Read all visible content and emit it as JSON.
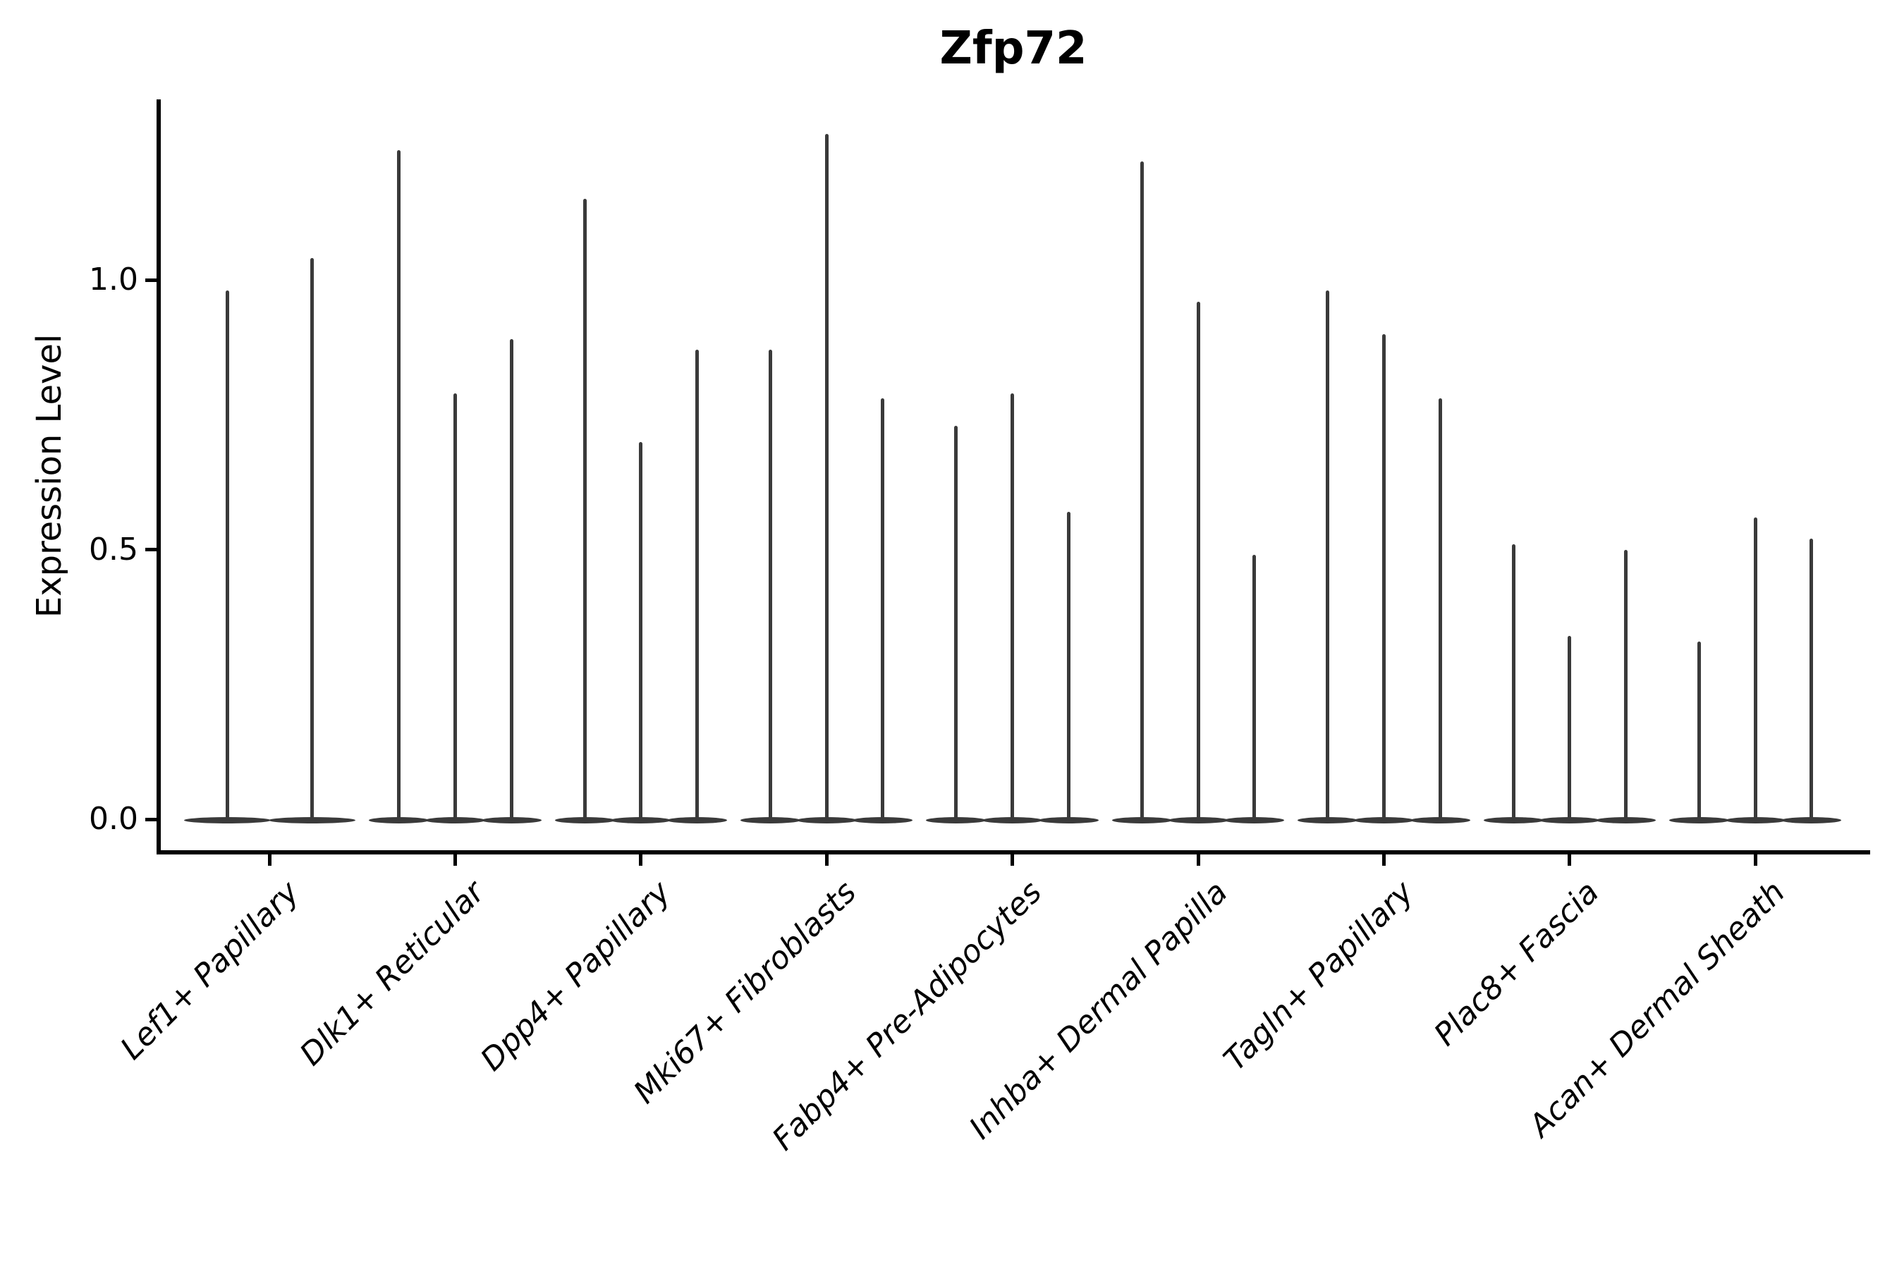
{
  "figure": {
    "title": "Zfp72",
    "y_axis_label": "Expression Level"
  },
  "chart_data": {
    "type": "violin",
    "title": "Zfp72",
    "xlabel": "",
    "ylabel": "Expression Level",
    "yticks": [
      0.0,
      0.5,
      1.0
    ],
    "ytick_labels": [
      "0.0",
      "0.5",
      "1.0"
    ],
    "ylim": [
      -0.06,
      1.33
    ],
    "grid": false,
    "legend": "none",
    "categories": [
      "Lef1+ Papillary",
      "Dlk1+ Reticular",
      "Dpp4+ Papillary",
      "Mki67+ Fibroblasts",
      "Fabp4+ Pre-Adipocytes",
      "Inhba+ Dermal Papilla",
      "Tagln+ Papillary",
      "Plac8+ Fascia",
      "Acan+ Dermal Sheath"
    ],
    "groups": [
      {
        "category": "Lef1+ Papillary",
        "violin_maxima": [
          0.98,
          1.04
        ]
      },
      {
        "category": "Dlk1+ Reticular",
        "violin_maxima": [
          1.24,
          0.79,
          0.89
        ]
      },
      {
        "category": "Dpp4+ Papillary",
        "violin_maxima": [
          1.15,
          0.7,
          0.87
        ]
      },
      {
        "category": "Mki67+ Fibroblasts",
        "violin_maxima": [
          0.87,
          1.27,
          0.78
        ]
      },
      {
        "category": "Fabp4+ Pre-Adipocytes",
        "violin_maxima": [
          0.73,
          0.79,
          0.57
        ]
      },
      {
        "category": "Inhba+ Dermal Papilla",
        "violin_maxima": [
          1.22,
          0.96,
          0.49
        ]
      },
      {
        "category": "Tagln+ Papillary",
        "violin_maxima": [
          0.98,
          0.9,
          0.78
        ]
      },
      {
        "category": "Plac8+ Fascia",
        "violin_maxima": [
          0.51,
          0.34,
          0.5
        ]
      },
      {
        "category": "Acan+ Dermal Sheath",
        "violin_maxima": [
          0.33,
          0.56,
          0.52
        ]
      }
    ],
    "description": "Each cell type shows 2-3 needle-thin violins: density mass concentrated at expression 0 (flat disc on baseline) with a thin tail reaching up to the listed maximum expression value.",
    "colors": {
      "violin": "#3a3a3a",
      "spine": "#000000",
      "text": "#000000",
      "background": "#ffffff"
    }
  }
}
